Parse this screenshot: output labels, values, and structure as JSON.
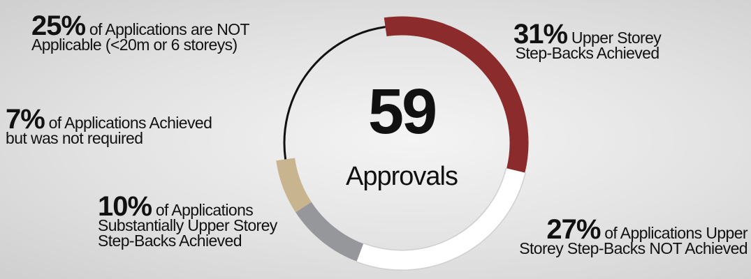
{
  "chart_data": {
    "type": "donut",
    "center_value": "59",
    "center_label": "Approvals",
    "categories": [
      "Upper Storey\nStep-Backs Achieved",
      "of Applications Upper\nStorey Step-Backs NOT Achieved",
      "of Applications\nSubstantially Upper Storey\nStep-Backs Achieved",
      "of Applications Achieved\nbut was not required",
      "of Applications  are NOT\nApplicable (<20m or 6 storeys)"
    ],
    "values": [
      31,
      27,
      10,
      7,
      25
    ],
    "value_labels": [
      "31%",
      "27%",
      "10%",
      "7%",
      "25%"
    ],
    "colors": [
      "#8b2b2b",
      "#ffffff",
      "#96979b",
      "#c8b48e",
      "#111111"
    ]
  }
}
